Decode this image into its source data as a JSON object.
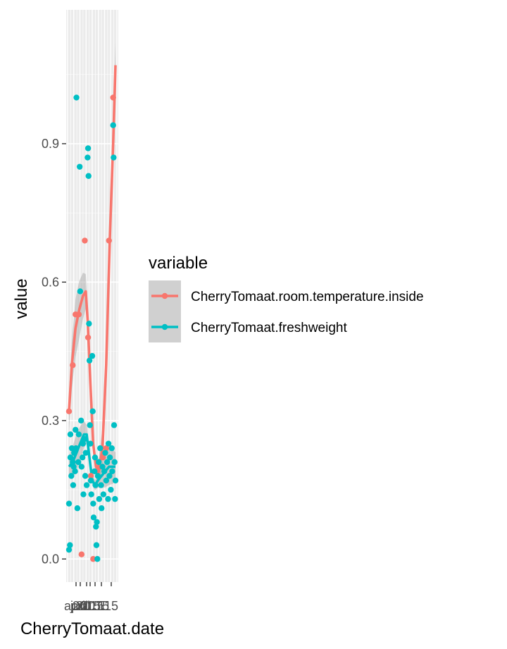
{
  "chart_data": {
    "type": "scatter",
    "xlabel": "CherryTomaat.date",
    "ylabel": "value",
    "x_tick_labels": [
      "april",
      "juni",
      "2015",
      "2015",
      "2015",
      "1",
      "15"
    ],
    "y_ticks": [
      "0.0",
      "0.3",
      "0.6",
      "0.9"
    ],
    "ylim": [
      -0.05,
      1.19
    ],
    "grid": true,
    "legend": {
      "title": "variable",
      "placement": "right"
    },
    "series": [
      {
        "name": "CherryTomaat.room.temperature.inside",
        "color": "#F8766D",
        "points": [
          [
            0.0,
            0.32
          ],
          [
            0.08,
            0.42
          ],
          [
            0.14,
            0.53
          ],
          [
            0.21,
            0.53
          ],
          [
            0.27,
            0.01
          ],
          [
            0.34,
            0.69
          ],
          [
            0.41,
            0.48
          ],
          [
            0.47,
            0.18
          ],
          [
            0.52,
            0.0
          ],
          [
            0.6,
            0.19
          ],
          [
            0.66,
            0.2
          ],
          [
            0.73,
            0.22
          ],
          [
            0.8,
            0.24
          ],
          [
            0.86,
            0.69
          ],
          [
            0.95,
            1.0
          ]
        ],
        "smooth": [
          [
            0.0,
            0.32
          ],
          [
            0.06,
            0.42
          ],
          [
            0.14,
            0.5
          ],
          [
            0.22,
            0.54
          ],
          [
            0.3,
            0.57
          ],
          [
            0.36,
            0.58
          ],
          [
            0.4,
            0.52
          ],
          [
            0.46,
            0.38
          ],
          [
            0.52,
            0.25
          ],
          [
            0.58,
            0.2
          ],
          [
            0.64,
            0.19
          ],
          [
            0.72,
            0.24
          ],
          [
            0.8,
            0.42
          ],
          [
            0.88,
            0.7
          ],
          [
            0.95,
            0.9
          ],
          [
            1.0,
            1.07
          ]
        ]
      },
      {
        "name": "CherryTomaat.freshweight",
        "color": "#00BFC4",
        "points": [
          [
            0.0,
            0.02
          ],
          [
            0.0,
            0.12
          ],
          [
            0.02,
            0.03
          ],
          [
            0.03,
            0.27
          ],
          [
            0.03,
            0.22
          ],
          [
            0.05,
            0.18
          ],
          [
            0.06,
            0.24
          ],
          [
            0.08,
            0.21
          ],
          [
            0.09,
            0.16
          ],
          [
            0.1,
            0.2
          ],
          [
            0.11,
            0.23
          ],
          [
            0.13,
            0.19
          ],
          [
            0.14,
            0.28
          ],
          [
            0.15,
            0.24
          ],
          [
            0.16,
            1.0
          ],
          [
            0.18,
            0.11
          ],
          [
            0.2,
            0.21
          ],
          [
            0.21,
            0.27
          ],
          [
            0.23,
            0.85
          ],
          [
            0.24,
            0.58
          ],
          [
            0.26,
            0.3
          ],
          [
            0.27,
            0.2
          ],
          [
            0.29,
            0.22
          ],
          [
            0.3,
            0.25
          ],
          [
            0.31,
            0.14
          ],
          [
            0.33,
            0.26
          ],
          [
            0.35,
            0.18
          ],
          [
            0.36,
            0.23
          ],
          [
            0.38,
            0.16
          ],
          [
            0.4,
            0.87
          ],
          [
            0.41,
            0.89
          ],
          [
            0.42,
            0.83
          ],
          [
            0.43,
            0.51
          ],
          [
            0.44,
            0.43
          ],
          [
            0.45,
            0.29
          ],
          [
            0.46,
            0.25
          ],
          [
            0.47,
            0.17
          ],
          [
            0.48,
            0.14
          ],
          [
            0.5,
            0.44
          ],
          [
            0.51,
            0.32
          ],
          [
            0.52,
            0.12
          ],
          [
            0.53,
            0.09
          ],
          [
            0.55,
            0.19
          ],
          [
            0.56,
            0.22
          ],
          [
            0.57,
            0.16
          ],
          [
            0.58,
            0.07
          ],
          [
            0.59,
            0.03
          ],
          [
            0.6,
            0.08
          ],
          [
            0.61,
            0.0
          ],
          [
            0.62,
            0.18
          ],
          [
            0.64,
            0.21
          ],
          [
            0.65,
            0.13
          ],
          [
            0.67,
            0.24
          ],
          [
            0.69,
            0.16
          ],
          [
            0.7,
            0.11
          ],
          [
            0.72,
            0.2
          ],
          [
            0.74,
            0.14
          ],
          [
            0.76,
            0.19
          ],
          [
            0.78,
            0.23
          ],
          [
            0.8,
            0.17
          ],
          [
            0.82,
            0.21
          ],
          [
            0.84,
            0.13
          ],
          [
            0.85,
            0.25
          ],
          [
            0.87,
            0.18
          ],
          [
            0.88,
            0.22
          ],
          [
            0.9,
            0.15
          ],
          [
            0.92,
            0.24
          ],
          [
            0.93,
            0.19
          ],
          [
            0.95,
            0.94
          ],
          [
            0.96,
            0.87
          ],
          [
            0.97,
            0.29
          ],
          [
            0.98,
            0.21
          ],
          [
            0.99,
            0.13
          ],
          [
            1.0,
            0.17
          ]
        ],
        "smooth": [
          [
            0.0,
            0.2
          ],
          [
            0.08,
            0.21
          ],
          [
            0.16,
            0.23
          ],
          [
            0.24,
            0.25
          ],
          [
            0.32,
            0.27
          ],
          [
            0.38,
            0.27
          ],
          [
            0.44,
            0.22
          ],
          [
            0.5,
            0.17
          ],
          [
            0.56,
            0.16
          ],
          [
            0.62,
            0.17
          ],
          [
            0.7,
            0.18
          ],
          [
            0.78,
            0.19
          ],
          [
            0.86,
            0.2
          ],
          [
            0.94,
            0.2
          ],
          [
            1.0,
            0.2
          ]
        ]
      }
    ]
  }
}
